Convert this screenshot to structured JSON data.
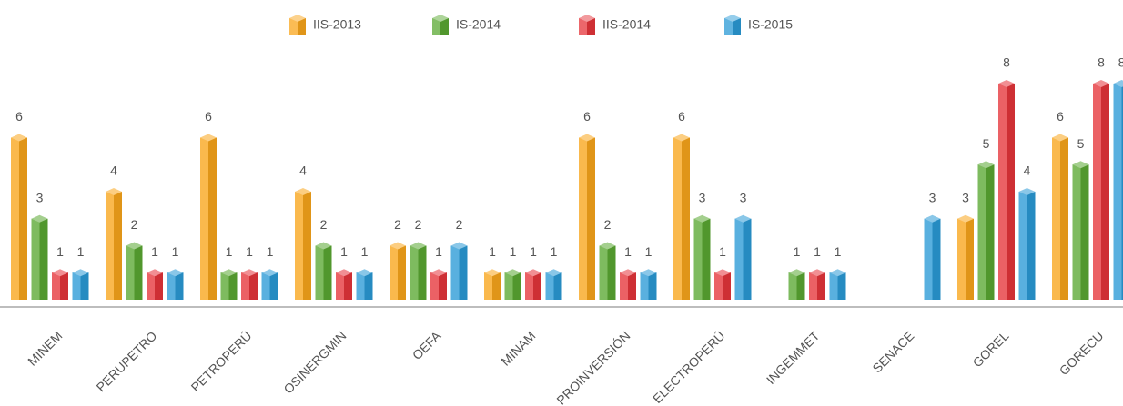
{
  "chart_data": {
    "type": "bar",
    "categories": [
      "MINEM",
      "PERUPETRO",
      "PETROPERÚ",
      "OSINERGMIN",
      "OEFA",
      "MINAM",
      "PROINVERSIÓN",
      "ELECTROPERÚ",
      "INGEMMET",
      "SENACE",
      "GOREL",
      "GORECU"
    ],
    "series": [
      {
        "name": "IIS-2013",
        "color": "#f9a51b",
        "values": [
          6,
          4,
          6,
          4,
          2,
          1,
          6,
          6,
          null,
          null,
          3,
          6
        ]
      },
      {
        "name": "IS-2014",
        "color": "#5aa832",
        "values": [
          3,
          2,
          1,
          2,
          2,
          1,
          2,
          3,
          1,
          null,
          5,
          5
        ]
      },
      {
        "name": "IIS-2014",
        "color": "#e5343a",
        "values": [
          1,
          1,
          1,
          1,
          1,
          1,
          1,
          1,
          1,
          null,
          8,
          8
        ]
      },
      {
        "name": "IS-2015",
        "color": "#2a9ad6",
        "values": [
          1,
          1,
          1,
          1,
          2,
          1,
          1,
          3,
          1,
          3,
          4,
          8
        ]
      }
    ],
    "legend": "top"
  }
}
